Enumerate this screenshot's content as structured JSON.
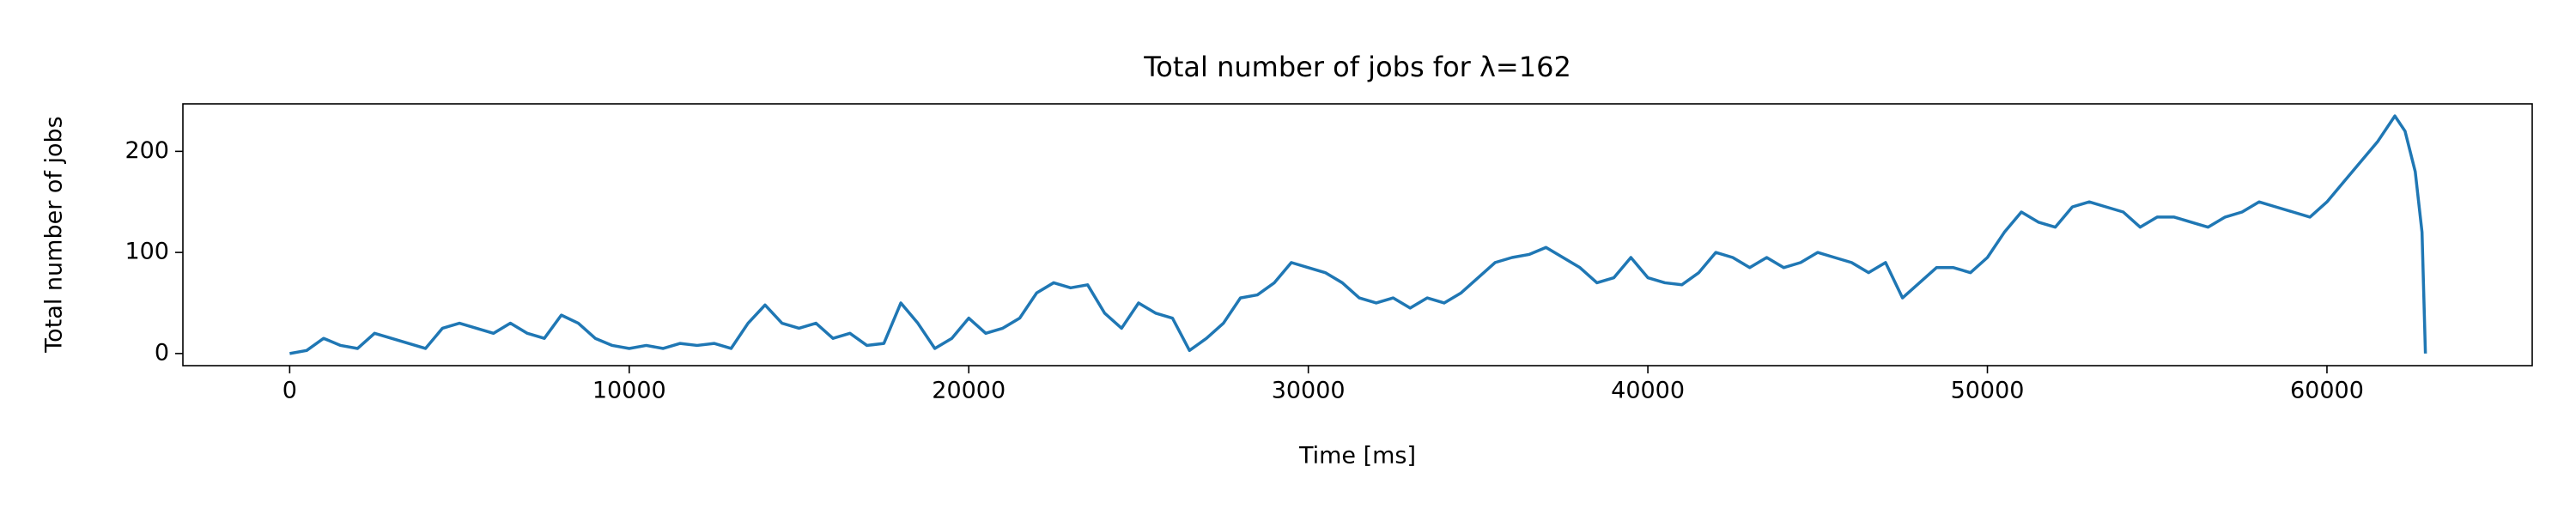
{
  "chart_data": {
    "type": "line",
    "title": "Total number of jobs for λ=162",
    "x_label": "Time [ms]",
    "y_label": "Total number of jobs",
    "x": [
      0,
      500,
      1000,
      1500,
      2000,
      2500,
      3000,
      3500,
      4000,
      4500,
      5000,
      5500,
      6000,
      6500,
      7000,
      7500,
      8000,
      8500,
      9000,
      9500,
      10000,
      10500,
      11000,
      11500,
      12000,
      12500,
      13000,
      13500,
      14000,
      14500,
      15000,
      15500,
      16000,
      16500,
      17000,
      17500,
      18000,
      18500,
      19000,
      19500,
      20000,
      20500,
      21000,
      21500,
      22000,
      22500,
      23000,
      23500,
      24000,
      24500,
      25000,
      25500,
      26000,
      26500,
      27000,
      27500,
      28000,
      28500,
      29000,
      29500,
      30000,
      30500,
      31000,
      31500,
      32000,
      32500,
      33000,
      33500,
      34000,
      34500,
      35000,
      35500,
      36000,
      36500,
      37000,
      37500,
      38000,
      38500,
      39000,
      39500,
      40000,
      40500,
      41000,
      41500,
      42000,
      42500,
      43000,
      43500,
      44000,
      44500,
      45000,
      45500,
      46000,
      46500,
      47000,
      47500,
      48000,
      48500,
      49000,
      49500,
      50000,
      50500,
      51000,
      51500,
      52000,
      52500,
      53000,
      53500,
      54000,
      54500,
      55000,
      55500,
      56000,
      56500,
      57000,
      57500,
      58000,
      58500,
      59000,
      59500,
      60000,
      60500,
      61000,
      61500,
      62000,
      62300,
      62600,
      62800,
      62900
    ],
    "series": [
      {
        "color": "#1f77b4",
        "values": [
          0,
          3,
          15,
          8,
          5,
          20,
          15,
          10,
          5,
          25,
          30,
          25,
          20,
          30,
          20,
          15,
          38,
          30,
          15,
          8,
          5,
          8,
          5,
          10,
          8,
          10,
          5,
          30,
          48,
          30,
          25,
          30,
          15,
          20,
          8,
          10,
          50,
          30,
          5,
          15,
          35,
          20,
          25,
          35,
          60,
          70,
          65,
          68,
          40,
          25,
          50,
          40,
          35,
          3,
          15,
          30,
          55,
          58,
          70,
          90,
          85,
          80,
          70,
          55,
          50,
          55,
          45,
          55,
          50,
          60,
          75,
          90,
          95,
          98,
          105,
          95,
          85,
          70,
          75,
          95,
          75,
          70,
          68,
          80,
          100,
          95,
          85,
          95,
          85,
          90,
          100,
          95,
          90,
          80,
          90,
          55,
          70,
          85,
          85,
          80,
          95,
          120,
          140,
          130,
          125,
          145,
          150,
          145,
          140,
          125,
          135,
          135,
          130,
          125,
          135,
          140,
          150,
          145,
          140,
          135,
          150,
          170,
          190,
          210,
          235,
          220,
          180,
          120,
          0
        ]
      }
    ],
    "xlim": [
      -3145,
      66045
    ],
    "ylim": [
      -12,
      247
    ],
    "xticks": [
      0,
      10000,
      20000,
      30000,
      40000,
      50000,
      60000
    ],
    "yticks": [
      0,
      100,
      200
    ]
  }
}
